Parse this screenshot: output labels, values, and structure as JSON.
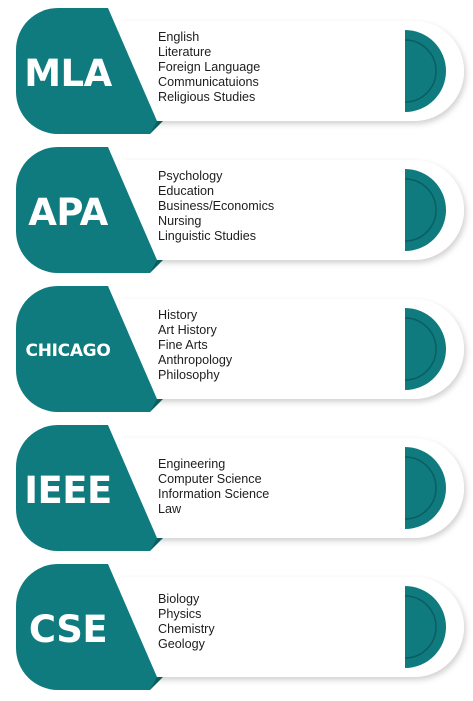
{
  "colors": {
    "teal": "#0f7b7f",
    "teal_dark": "#0b5d61",
    "card_bg": "#ffffff",
    "shadow": "#d6d6d6",
    "text": "#1d1d1d"
  },
  "cards": [
    {
      "style": "MLA",
      "subjects": [
        "English",
        "Literature",
        "Foreign Language",
        "Communicatuions",
        "Religious Studies"
      ]
    },
    {
      "style": "APA",
      "subjects": [
        "Psychology",
        "Education",
        "Business/Economics",
        "Nursing",
        "Linguistic Studies"
      ]
    },
    {
      "style": "CHICAGO",
      "subjects": [
        "History",
        "Art History",
        "Fine Arts",
        "Anthropology",
        "Philosophy"
      ]
    },
    {
      "style": "IEEE",
      "subjects": [
        "Engineering",
        "Computer Science",
        "Information Science",
        "Law"
      ]
    },
    {
      "style": "CSE",
      "subjects": [
        "Biology",
        "Physics",
        "Chemistry",
        "Geology"
      ]
    }
  ]
}
